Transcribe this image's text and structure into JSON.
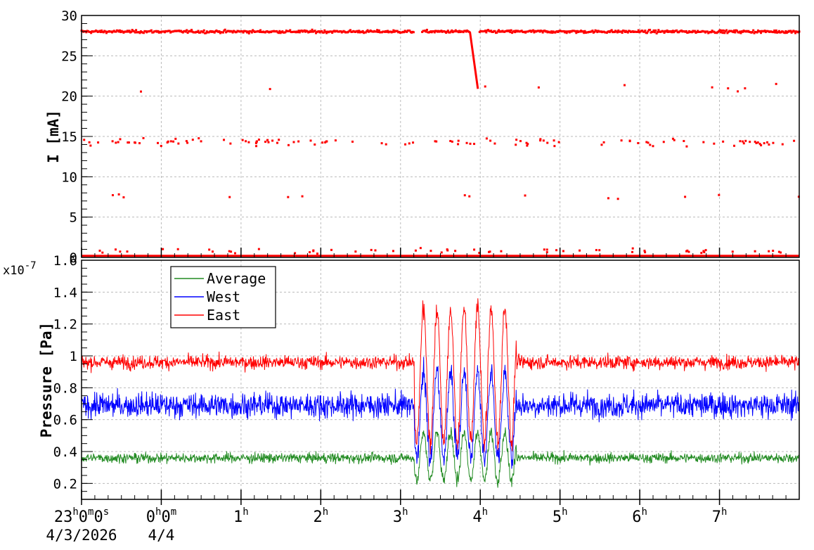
{
  "chart_data": [
    {
      "type": "scatter",
      "ylabel": "I [mA]",
      "ylim": [
        0,
        30
      ],
      "yticks": [
        "0",
        "5",
        "10",
        "15",
        "20",
        "25",
        "30"
      ],
      "grid": true,
      "color": "#ff0000",
      "series": [
        {
          "main_level": 28.0,
          "gap_hours": [
            4.17,
            4.27
          ],
          "drop": {
            "start_hour": 4.87,
            "start_value": 28.0,
            "end_hour": 4.97,
            "end_value": 20.9
          },
          "baseline_value": 0.2,
          "scattered_levels": [
            0.8,
            7.5,
            14.3,
            21.0
          ]
        }
      ]
    },
    {
      "type": "line",
      "ylabel": "Pressure [Pa]",
      "exponent_label": "x10",
      "exponent_power": "-7",
      "ylim": [
        0.1,
        1.6
      ],
      "yticks": [
        "0.2",
        "0.4",
        "0.6",
        "0.8",
        "1",
        "1.2",
        "1.4",
        "1.6"
      ],
      "grid": true,
      "legend_position": "top-left",
      "series": [
        {
          "name": "Average",
          "color": "#228b22",
          "mean_level": 0.36
        },
        {
          "name": "West",
          "color": "#0000ff",
          "mean_level": 0.69
        },
        {
          "name": "East",
          "color": "#ff0000",
          "mean_level": 0.96
        }
      ]
    }
  ],
  "x_axis": {
    "type": "time",
    "start_time": "23:00:00",
    "start_date": "4/3/2026",
    "end_hour_offset": 9.0,
    "ticks": [
      {
        "hour": 0,
        "base": "23",
        "sup1": "h",
        "mid": "0",
        "sup2": "m",
        "tail": "0",
        "sup3": "s"
      },
      {
        "hour": 1,
        "base": "0",
        "sup1": "h",
        "mid": "0",
        "sup2": "m",
        "tail": "",
        "sup3": ""
      },
      {
        "hour": 2,
        "base": "1",
        "sup1": "h",
        "mid": "",
        "sup2": "",
        "tail": "",
        "sup3": ""
      },
      {
        "hour": 3,
        "base": "2",
        "sup1": "h",
        "mid": "",
        "sup2": "",
        "tail": "",
        "sup3": ""
      },
      {
        "hour": 4,
        "base": "3",
        "sup1": "h",
        "mid": "",
        "sup2": "",
        "tail": "",
        "sup3": ""
      },
      {
        "hour": 5,
        "base": "4",
        "sup1": "h",
        "mid": "",
        "sup2": "",
        "tail": "",
        "sup3": ""
      },
      {
        "hour": 6,
        "base": "5",
        "sup1": "h",
        "mid": "",
        "sup2": "",
        "tail": "",
        "sup3": ""
      },
      {
        "hour": 7,
        "base": "6",
        "sup1": "h",
        "mid": "",
        "sup2": "",
        "tail": "",
        "sup3": ""
      },
      {
        "hour": 8,
        "base": "7",
        "sup1": "h",
        "mid": "",
        "sup2": "",
        "tail": "",
        "sup3": ""
      }
    ],
    "date_labels": [
      {
        "hour": 0,
        "text": "4/3/2026"
      },
      {
        "hour": 1,
        "text": "4/4"
      }
    ]
  }
}
